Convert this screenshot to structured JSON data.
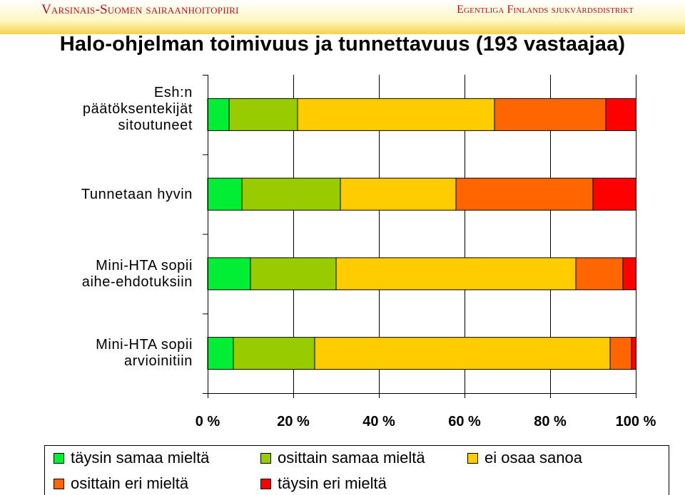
{
  "header": {
    "left_text": "Varsinais-Suomen sairaanhoitopiiri",
    "right_text": "Egentliga Finlands sjukvårdsdistrikt"
  },
  "chart_data": {
    "type": "bar",
    "orientation": "horizontal",
    "stacked": true,
    "normalized": true,
    "title": "Halo-ohjelman toimivuus ja tunnettavuus (193 vastaajaa)",
    "categories": [
      "Esh:n\npäätöksentekijät\nsitoutuneet",
      "Tunnetaan hyvin",
      "Mini-HTA sopii\naihe-ehdotuksiin",
      "Mini-HTA sopii\narvioinitiin"
    ],
    "series": [
      {
        "name": "täysin samaa mieltä",
        "color": "#00ee33",
        "values": [
          5,
          8,
          10,
          6
        ]
      },
      {
        "name": "osittain samaa mieltä",
        "color": "#99cc00",
        "values": [
          16,
          23,
          20,
          19
        ]
      },
      {
        "name": "ei osaa sanoa",
        "color": "#ffcc00",
        "values": [
          46,
          27,
          56,
          69
        ]
      },
      {
        "name": "osittain eri mieltä",
        "color": "#ff6600",
        "values": [
          26,
          32,
          11,
          5
        ]
      },
      {
        "name": "täysin eri mieltä",
        "color": "#ff0000",
        "values": [
          7,
          10,
          3,
          1
        ]
      }
    ],
    "xlim": [
      0,
      100
    ],
    "x_ticks": [
      "0 %",
      "20 %",
      "40 %",
      "60 %",
      "80 %",
      "100 %"
    ],
    "grid": true,
    "legend_position": "bottom"
  }
}
